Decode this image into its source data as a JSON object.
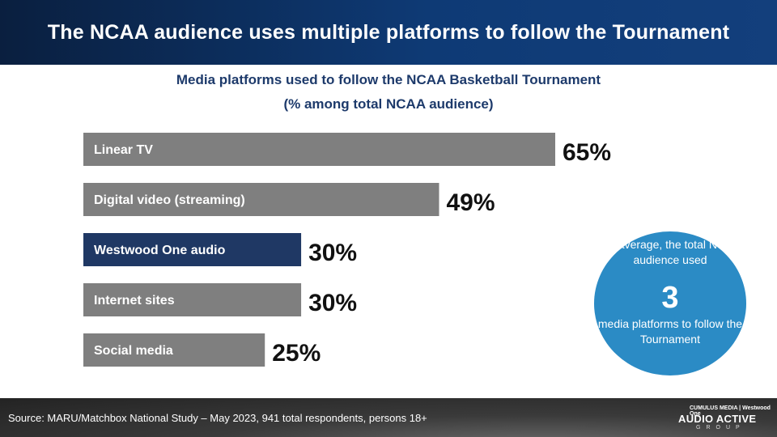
{
  "header": {
    "title": "The NCAA audience uses multiple platforms to follow the Tournament"
  },
  "chart_data": {
    "type": "bar",
    "orientation": "horizontal",
    "title": "Media platforms used to follow the NCAA Basketball Tournament",
    "subtitle": "(% among total NCAA audience)",
    "categories": [
      "Linear TV",
      "Digital video (streaming)",
      "Westwood One audio",
      "Internet sites",
      "Social media"
    ],
    "values": [
      65,
      49,
      30,
      30,
      25
    ],
    "value_labels": [
      "65%",
      "49%",
      "30%",
      "30%",
      "25%"
    ],
    "unit": "%",
    "bar_colors": [
      "#7f7f7f",
      "#7f7f7f",
      "#1f3864",
      "#7f7f7f",
      "#7f7f7f"
    ],
    "highlight": "Westwood One audio",
    "grid": false,
    "legend": "none"
  },
  "callout": {
    "text_before": "On average, the total NCAA audience used",
    "number": "3",
    "text_after": "media platforms to follow the Tournament",
    "color": "#2b8bc5"
  },
  "footer": {
    "source": "Source: MARU/Matchbox National Study – May 2023, 941 total respondents, persons 18+",
    "logo_top": "CUMULUS MEDIA | Westwood One",
    "logo_main": "AUDIO ACTIVE",
    "logo_sub": "GROUP"
  }
}
